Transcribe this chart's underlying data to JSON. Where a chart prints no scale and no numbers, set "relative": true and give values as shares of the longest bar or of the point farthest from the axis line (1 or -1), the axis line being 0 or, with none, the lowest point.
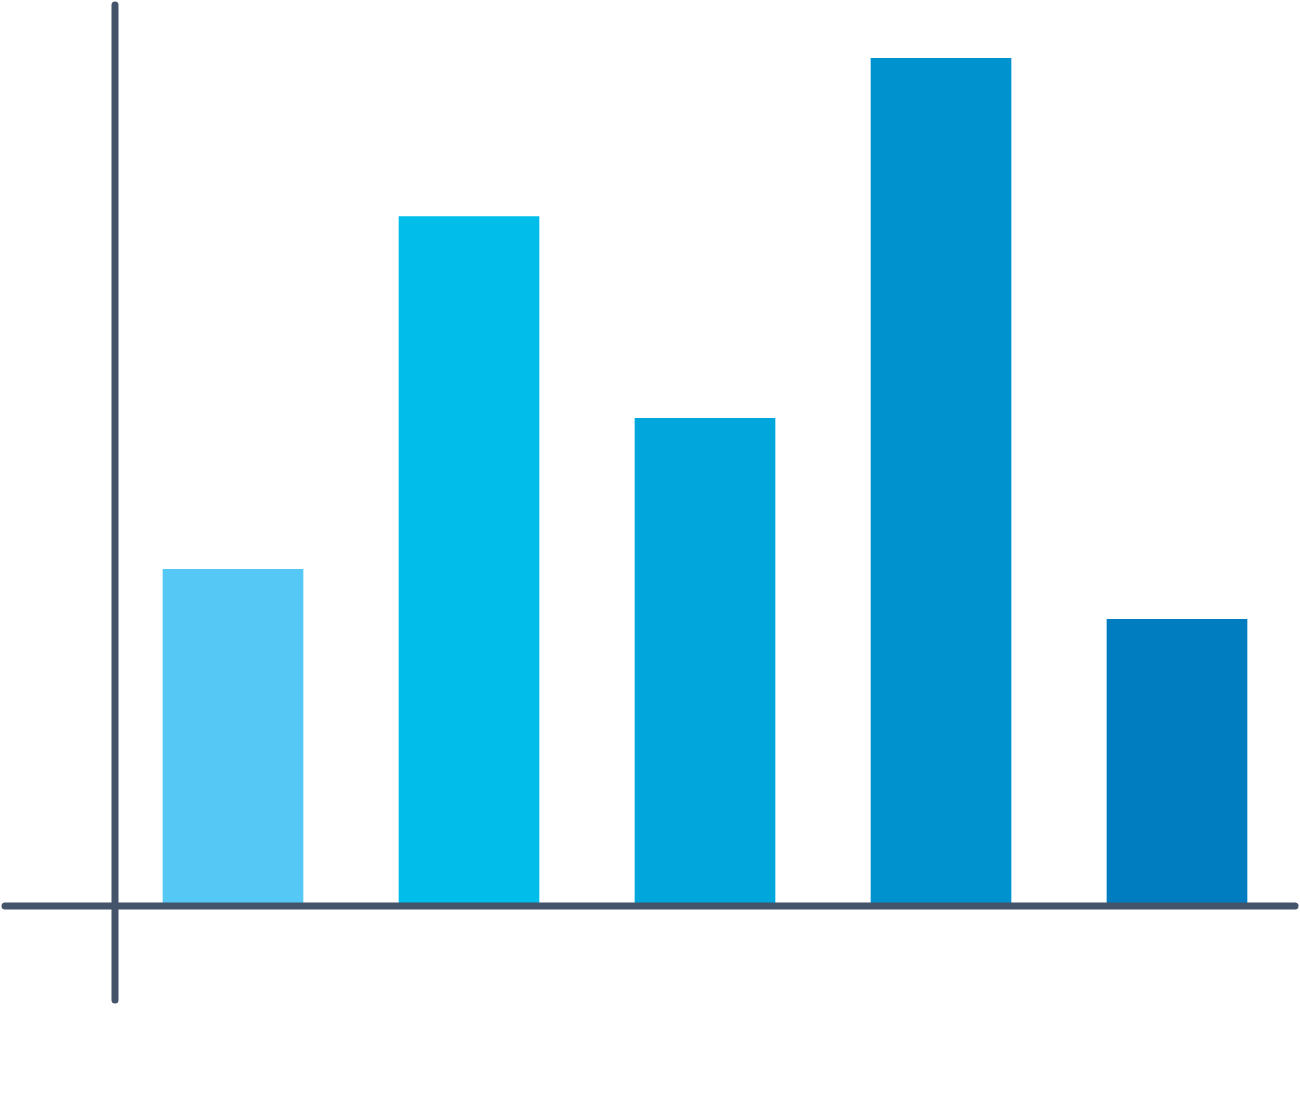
{
  "chart_data": {
    "type": "bar",
    "relative": true,
    "categories": [
      null,
      null,
      null,
      null,
      null
    ],
    "values": [
      0.397,
      0.813,
      0.575,
      1,
      0.338
    ],
    "colors": [
      "#55c8f5",
      "#00bdea",
      "#00a6dc",
      "#0091cf",
      "#007cc0"
    ],
    "grid": false,
    "legend": false
  }
}
